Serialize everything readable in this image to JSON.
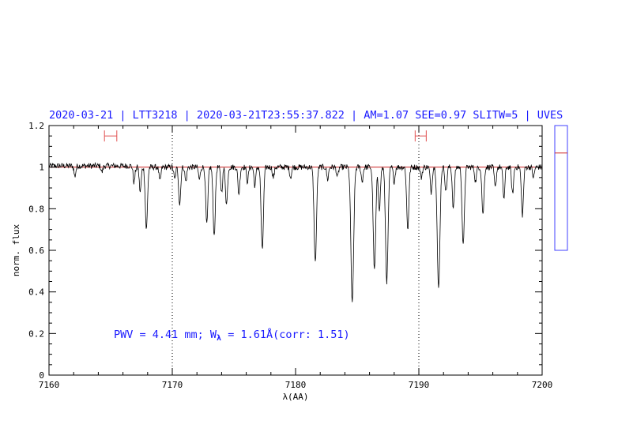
{
  "chart_data": {
    "type": "line",
    "title": "2020-03-21 | LTT3218 | 2020-03-21T23:55:37.822 | AM=1.07 SEE=0.97 SLITW=5 | UVES",
    "xlabel": "λ(AA)",
    "ylabel": "norm. flux",
    "xlim": [
      7160,
      7200
    ],
    "ylim": [
      0,
      1.2
    ],
    "x_ticks": [
      7160,
      7170,
      7180,
      7190,
      7200
    ],
    "x_tick_labels": [
      "7160",
      "7170",
      "7180",
      "7190",
      "7200"
    ],
    "y_ticks": [
      0,
      0.2,
      0.4,
      0.6,
      0.8,
      1,
      1.2
    ],
    "y_tick_labels": [
      "0",
      "0.2",
      "0.4",
      "0.6",
      "0.8",
      "1",
      "1.2"
    ],
    "vertical_dotted_lines": [
      7170,
      7190
    ],
    "continuum_level": 1.0,
    "continuum_color": "#cc2222",
    "spectrum_color": "#000000",
    "accent_color": "#1a1aff",
    "range_markers": [
      {
        "x_min": 7164.5,
        "x_max": 7165.5,
        "y": 1.15
      },
      {
        "x_min": 7189.7,
        "x_max": 7190.6,
        "y": 1.15
      }
    ],
    "absorption_lines": [
      {
        "x": 7162.1,
        "depth": 0.05
      },
      {
        "x": 7164.3,
        "depth": 0.03
      },
      {
        "x": 7166.9,
        "depth": 0.08
      },
      {
        "x": 7167.4,
        "depth": 0.12
      },
      {
        "x": 7167.9,
        "depth": 0.3
      },
      {
        "x": 7169.0,
        "depth": 0.07
      },
      {
        "x": 7170.2,
        "depth": 0.06
      },
      {
        "x": 7170.6,
        "depth": 0.18
      },
      {
        "x": 7171.1,
        "depth": 0.07
      },
      {
        "x": 7172.2,
        "depth": 0.06
      },
      {
        "x": 7172.8,
        "depth": 0.28
      },
      {
        "x": 7173.4,
        "depth": 0.33
      },
      {
        "x": 7174.0,
        "depth": 0.12
      },
      {
        "x": 7174.4,
        "depth": 0.18
      },
      {
        "x": 7175.4,
        "depth": 0.13
      },
      {
        "x": 7176.1,
        "depth": 0.07
      },
      {
        "x": 7176.7,
        "depth": 0.09
      },
      {
        "x": 7177.3,
        "depth": 0.4
      },
      {
        "x": 7178.2,
        "depth": 0.05
      },
      {
        "x": 7179.6,
        "depth": 0.05
      },
      {
        "x": 7181.6,
        "depth": 0.46
      },
      {
        "x": 7182.6,
        "depth": 0.06
      },
      {
        "x": 7183.4,
        "depth": 0.05
      },
      {
        "x": 7184.6,
        "depth": 0.66
      },
      {
        "x": 7185.4,
        "depth": 0.07
      },
      {
        "x": 7186.4,
        "depth": 0.5
      },
      {
        "x": 7186.8,
        "depth": 0.2
      },
      {
        "x": 7187.4,
        "depth": 0.55
      },
      {
        "x": 7188.0,
        "depth": 0.07
      },
      {
        "x": 7189.1,
        "depth": 0.3
      },
      {
        "x": 7190.2,
        "depth": 0.05
      },
      {
        "x": 7191.0,
        "depth": 0.12
      },
      {
        "x": 7191.6,
        "depth": 0.59
      },
      {
        "x": 7192.2,
        "depth": 0.12
      },
      {
        "x": 7192.8,
        "depth": 0.2
      },
      {
        "x": 7193.6,
        "depth": 0.38
      },
      {
        "x": 7194.6,
        "depth": 0.07
      },
      {
        "x": 7195.2,
        "depth": 0.23
      },
      {
        "x": 7196.2,
        "depth": 0.1
      },
      {
        "x": 7196.9,
        "depth": 0.15
      },
      {
        "x": 7197.6,
        "depth": 0.13
      },
      {
        "x": 7198.4,
        "depth": 0.23
      },
      {
        "x": 7199.3,
        "depth": 0.05
      }
    ],
    "annotation": {
      "prefix": "PWV = 4.41 mm; W",
      "subscript": "λ",
      "suffix": " = 1.61Å(corr: 1.51)"
    },
    "side_panel": {
      "ylim": [
        0,
        1
      ],
      "marker_value": 0.78
    }
  }
}
